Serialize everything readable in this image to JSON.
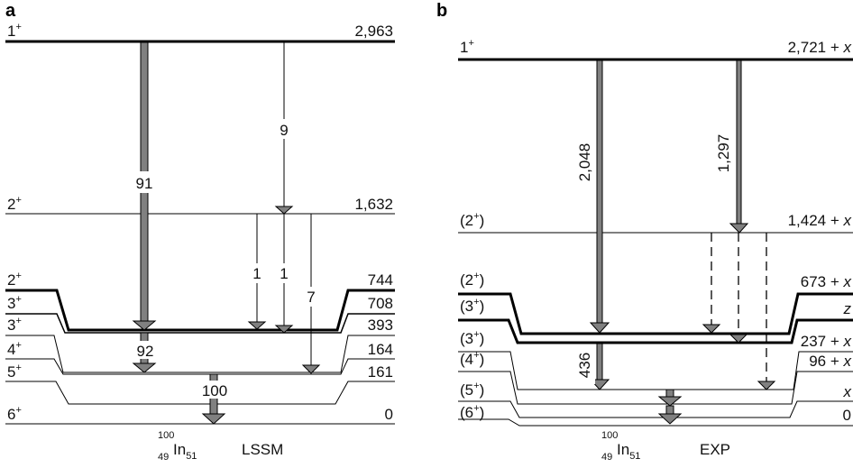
{
  "panels": [
    {
      "letter": "a",
      "nucleus": {
        "A": "100",
        "Z": "49",
        "symbol": "In",
        "N": "51"
      },
      "model": "LSSM",
      "levels": {
        "l1": {
          "spin": "1",
          "parity": "+",
          "energy": "2,963"
        },
        "l2": {
          "spin": "2",
          "parity": "+",
          "energy": "1,632"
        },
        "l3": {
          "spin": "2",
          "parity": "+",
          "energy": "744"
        },
        "l4": {
          "spin": "3",
          "parity": "+",
          "energy": "708"
        },
        "l5": {
          "spin": "3",
          "parity": "+",
          "energy": "393"
        },
        "l6": {
          "spin": "4",
          "parity": "+",
          "energy": "164"
        },
        "l7": {
          "spin": "5",
          "parity": "+",
          "energy": "161"
        },
        "l8": {
          "spin": "6",
          "parity": "+",
          "energy": "0"
        }
      },
      "transitions": {
        "t91": "91",
        "t9": "9",
        "t1a": "1",
        "t1b": "1",
        "t7": "7",
        "t92": "92",
        "t100": "100"
      }
    },
    {
      "letter": "b",
      "nucleus": {
        "A": "100",
        "Z": "49",
        "symbol": "In",
        "N": "51"
      },
      "model": "EXP",
      "levels": {
        "l1": {
          "spin": "1",
          "parity": "+",
          "energy": "2,721 + ",
          "var": "x",
          "paren": false
        },
        "l2": {
          "spin": "2",
          "parity": "+",
          "energy": "1,424 + ",
          "var": "x",
          "paren": true
        },
        "l3": {
          "spin": "2",
          "parity": "+",
          "energy": "673 + ",
          "var": "x",
          "paren": true
        },
        "l4": {
          "spin": "3",
          "parity": "+",
          "energy": "",
          "var": "z",
          "paren": true
        },
        "l5": {
          "spin": "3",
          "parity": "+",
          "energy": "237 + ",
          "var": "x",
          "paren": true
        },
        "l6": {
          "spin": "4",
          "parity": "+",
          "energy": "96 + ",
          "var": "x",
          "paren": true
        },
        "l7": {
          "spin": "5",
          "parity": "+",
          "energy": "",
          "var": "x",
          "paren": true
        },
        "l8": {
          "spin": "6",
          "parity": "+",
          "energy": "0",
          "var": "",
          "paren": true
        }
      },
      "transitions": {
        "t2048": "2,048",
        "t1297": "1,297",
        "t436": "436"
      }
    }
  ]
}
